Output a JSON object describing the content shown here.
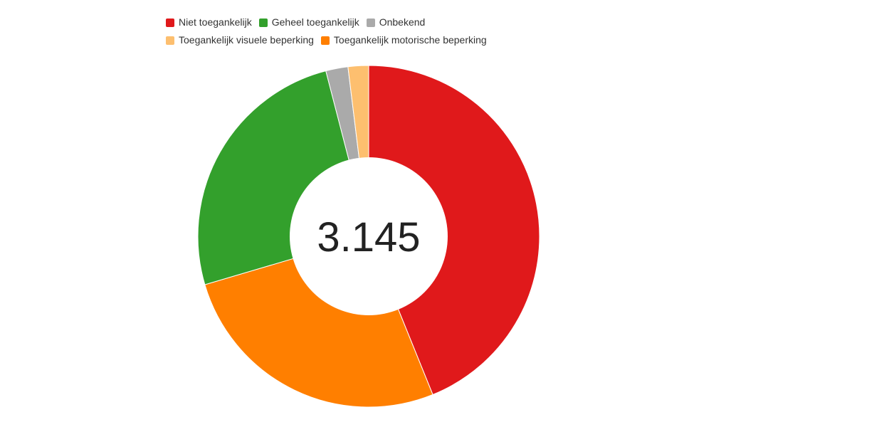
{
  "chart_data": {
    "type": "pie",
    "variant": "donut",
    "center_label": "3.145",
    "legend_placement": "top-left",
    "slices": [
      {
        "name": "Niet toegankelijk",
        "value": 1380,
        "color": "#e0191b"
      },
      {
        "name": "Toegankelijk motorische beperking",
        "value": 835,
        "color": "#ff7f00"
      },
      {
        "name": "Geheel toegankelijk",
        "value": 803,
        "color": "#33a02c"
      },
      {
        "name": "Onbekend",
        "value": 66,
        "color": "#aaaaaa"
      },
      {
        "name": "Toegankelijk visuele beperking",
        "value": 61,
        "color": "#fdbf6f"
      }
    ],
    "legend_order": [
      "Niet toegankelijk",
      "Geheel toegankelijk",
      "Onbekend",
      "Toegankelijk visuele beperking",
      "Toegankelijk motorische beperking"
    ]
  }
}
